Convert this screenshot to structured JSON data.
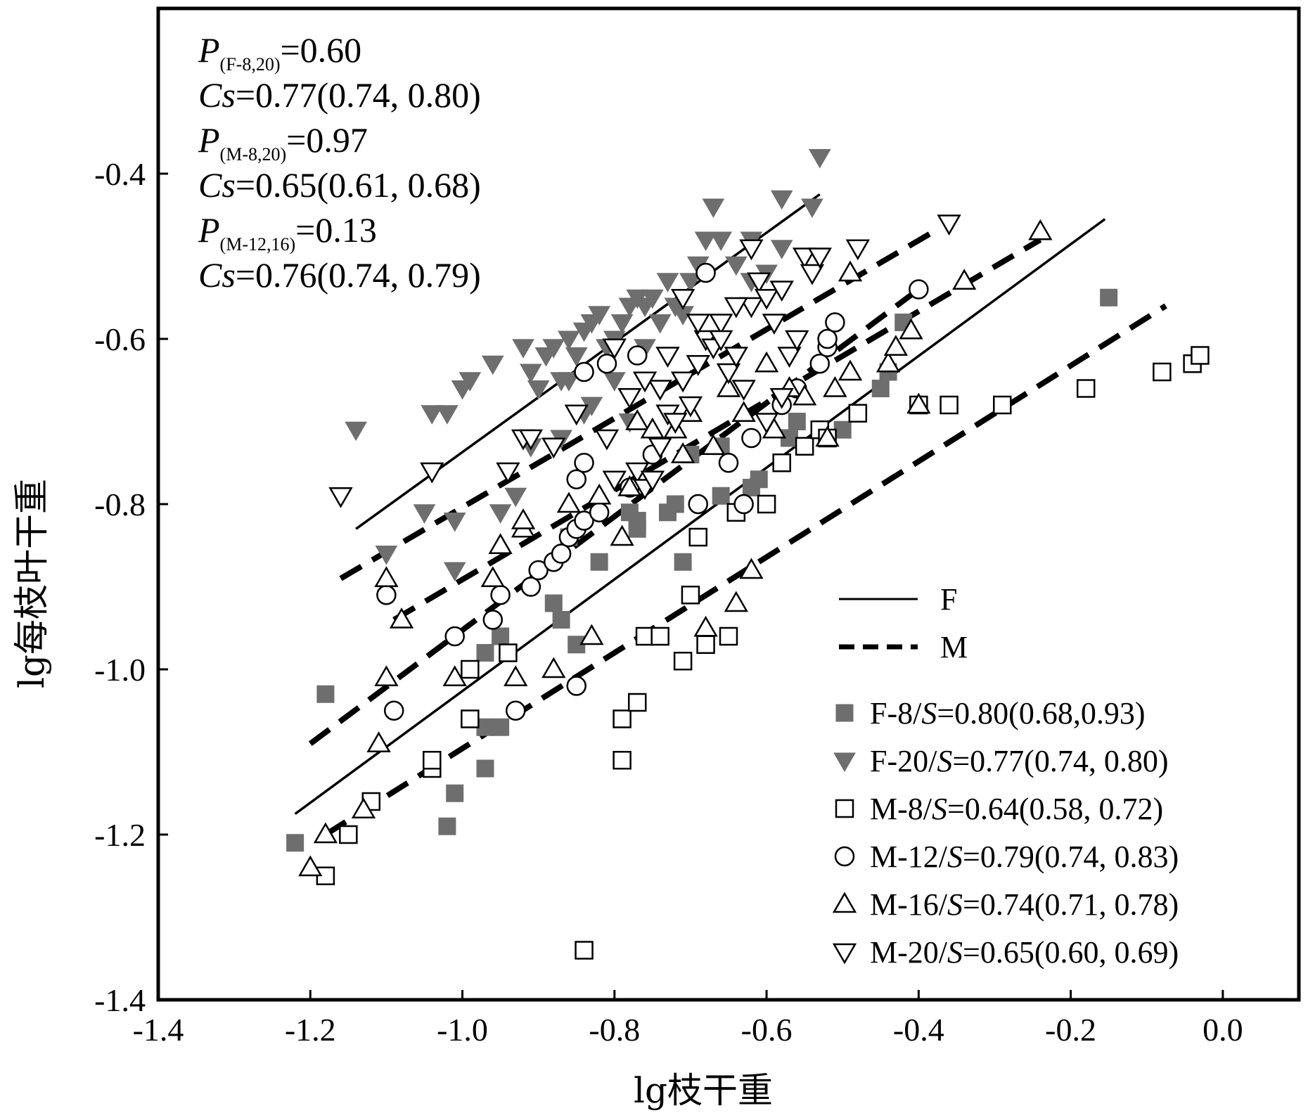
{
  "chart_data": {
    "type": "scatter",
    "xlabel": "lg枝干重",
    "ylabel": "lg每枝叶干重",
    "xlim": [
      -1.4,
      0.1
    ],
    "ylim": [
      -1.4,
      -0.2
    ],
    "xticks": [
      "-1.4",
      "-1.2",
      "-1.0",
      "-0.8",
      "-0.6",
      "-0.4",
      "-0.2",
      "0.0"
    ],
    "yticks": [
      "-1.4",
      "-1.2",
      "-1.0",
      "-0.8",
      "-0.6",
      "-0.4"
    ],
    "xtick_values": [
      -1.4,
      -1.2,
      -1.0,
      -0.8,
      -0.6,
      -0.4,
      -0.2,
      0.0
    ],
    "ytick_values": [
      -1.4,
      -1.2,
      -1.0,
      -0.8,
      -0.6,
      -0.4
    ],
    "grid": false,
    "legend_position": "bottom-right",
    "annotations": [
      {
        "p": "P",
        "sub": "(F-8,20)",
        "rest": "=0.60"
      },
      {
        "p": "Cs",
        "sub": "",
        "rest": "=0.77(0.74, 0.80)"
      },
      {
        "p": "P",
        "sub": "(M-8,20)",
        "rest": "=0.97"
      },
      {
        "p": "Cs",
        "sub": "",
        "rest": "=0.65(0.61, 0.68)"
      },
      {
        "p": "P",
        "sub": "(M-12,16)",
        "rest": "=0.13"
      },
      {
        "p": "Cs",
        "sub": "",
        "rest": "=0.76(0.74, 0.79)"
      }
    ],
    "line_legend": [
      {
        "label": "F",
        "style": "solid"
      },
      {
        "label": "M",
        "style": "dashed"
      }
    ],
    "fit_lines": [
      {
        "group": "F",
        "style": "solid",
        "x": [
          -1.14,
          -0.53
        ],
        "y": [
          -0.83,
          -0.425
        ]
      },
      {
        "group": "F",
        "style": "solid",
        "x": [
          -1.22,
          -0.155
        ],
        "y": [
          -1.175,
          -0.455
        ]
      },
      {
        "group": "M",
        "style": "dashed",
        "x": [
          -1.16,
          -0.38
        ],
        "y": [
          -0.89,
          -0.47
        ]
      },
      {
        "group": "M",
        "style": "dashed",
        "x": [
          -1.09,
          -0.24
        ],
        "y": [
          -0.94,
          -0.48
        ]
      },
      {
        "group": "M",
        "style": "dashed",
        "x": [
          -1.2,
          -0.4
        ],
        "y": [
          -1.09,
          -0.54
        ]
      },
      {
        "group": "M",
        "style": "dashed",
        "x": [
          -1.18,
          -0.075
        ],
        "y": [
          -1.2,
          -0.56
        ]
      }
    ],
    "series": [
      {
        "name": "F-8",
        "legend_prefix": "F-8/",
        "legend_s": "S",
        "legend_value": "=0.80(0.68,0.93)",
        "marker": "square",
        "fill": "#6e6e6e",
        "stroke": "#6e6e6e",
        "points": [
          [
            -1.22,
            -1.21
          ],
          [
            -1.18,
            -1.03
          ],
          [
            -1.02,
            -1.19
          ],
          [
            -1.01,
            -1.15
          ],
          [
            -0.97,
            -1.12
          ],
          [
            -0.97,
            -1.07
          ],
          [
            -0.95,
            -1.07
          ],
          [
            -0.95,
            -0.96
          ],
          [
            -0.97,
            -0.98
          ],
          [
            -0.99,
            -1.0
          ],
          [
            -0.88,
            -0.92
          ],
          [
            -0.87,
            -0.94
          ],
          [
            -0.85,
            -0.97
          ],
          [
            -0.82,
            -0.87
          ],
          [
            -0.86,
            -0.84
          ],
          [
            -0.77,
            -0.83
          ],
          [
            -0.78,
            -0.81
          ],
          [
            -0.73,
            -0.81
          ],
          [
            -0.71,
            -0.87
          ],
          [
            -0.72,
            -0.8
          ],
          [
            -0.66,
            -0.79
          ],
          [
            -0.62,
            -0.78
          ],
          [
            -0.61,
            -0.77
          ],
          [
            -0.57,
            -0.72
          ],
          [
            -0.56,
            -0.7
          ],
          [
            -0.53,
            -0.71
          ],
          [
            -0.5,
            -0.71
          ],
          [
            -0.45,
            -0.66
          ],
          [
            -0.44,
            -0.64
          ],
          [
            -0.42,
            -0.58
          ],
          [
            -0.15,
            -0.55
          ],
          [
            -0.66,
            -0.73
          ],
          [
            -0.7,
            -0.74
          ],
          [
            -0.77,
            -0.82
          ]
        ]
      },
      {
        "name": "F-20",
        "legend_prefix": "F-20/",
        "legend_s": "S",
        "legend_value": "=0.77(0.74, 0.80)",
        "marker": "tri-down",
        "fill": "#6e6e6e",
        "stroke": "#6e6e6e",
        "points": [
          [
            -1.14,
            -0.71
          ],
          [
            -1.1,
            -0.86
          ],
          [
            -1.05,
            -0.81
          ],
          [
            -1.01,
            -0.82
          ],
          [
            -1.01,
            -0.88
          ],
          [
            -1.02,
            -0.69
          ],
          [
            -1.04,
            -0.69
          ],
          [
            -1.0,
            -0.66
          ],
          [
            -0.99,
            -0.65
          ],
          [
            -0.96,
            -0.63
          ],
          [
            -0.95,
            -0.81
          ],
          [
            -0.93,
            -0.79
          ],
          [
            -0.92,
            -0.61
          ],
          [
            -0.91,
            -0.64
          ],
          [
            -0.9,
            -0.66
          ],
          [
            -0.88,
            -0.61
          ],
          [
            -0.87,
            -0.65
          ],
          [
            -0.86,
            -0.6
          ],
          [
            -0.85,
            -0.62
          ],
          [
            -0.84,
            -0.59
          ],
          [
            -0.83,
            -0.58
          ],
          [
            -0.82,
            -0.57
          ],
          [
            -0.81,
            -0.61
          ],
          [
            -0.8,
            -0.6
          ],
          [
            -0.79,
            -0.58
          ],
          [
            -0.78,
            -0.56
          ],
          [
            -0.77,
            -0.55
          ],
          [
            -0.76,
            -0.56
          ],
          [
            -0.75,
            -0.55
          ],
          [
            -0.74,
            -0.58
          ],
          [
            -0.73,
            -0.53
          ],
          [
            -0.72,
            -0.56
          ],
          [
            -0.71,
            -0.55
          ],
          [
            -0.7,
            -0.53
          ],
          [
            -0.69,
            -0.51
          ],
          [
            -0.68,
            -0.48
          ],
          [
            -0.67,
            -0.44
          ],
          [
            -0.66,
            -0.48
          ],
          [
            -0.64,
            -0.51
          ],
          [
            -0.62,
            -0.48
          ],
          [
            -0.6,
            -0.52
          ],
          [
            -0.58,
            -0.49
          ],
          [
            -0.58,
            -0.43
          ],
          [
            -0.54,
            -0.44
          ],
          [
            -0.53,
            -0.38
          ],
          [
            -0.62,
            -0.53
          ],
          [
            -0.86,
            -0.65
          ],
          [
            -0.83,
            -0.68
          ],
          [
            -0.8,
            -0.65
          ],
          [
            -0.78,
            -0.7
          ],
          [
            -0.91,
            -0.73
          ],
          [
            -0.87,
            -0.72
          ],
          [
            -0.84,
            -0.69
          ],
          [
            -0.89,
            -0.62
          ],
          [
            -0.76,
            -0.61
          ],
          [
            -0.71,
            -0.57
          ]
        ]
      },
      {
        "name": "M-8",
        "legend_prefix": "M-8/",
        "legend_s": "S",
        "legend_value": "=0.64(0.58, 0.72)",
        "marker": "square",
        "fill": "#ffffff",
        "stroke": "#000000",
        "points": [
          [
            -1.18,
            -1.25
          ],
          [
            -1.15,
            -1.2
          ],
          [
            -1.12,
            -1.16
          ],
          [
            -1.04,
            -1.12
          ],
          [
            -1.04,
            -1.11
          ],
          [
            -0.99,
            -1.06
          ],
          [
            -0.99,
            -1.0
          ],
          [
            -0.94,
            -0.98
          ],
          [
            -0.84,
            -1.34
          ],
          [
            -0.79,
            -1.11
          ],
          [
            -0.79,
            -1.06
          ],
          [
            -0.77,
            -1.04
          ],
          [
            -0.76,
            -0.96
          ],
          [
            -0.74,
            -0.96
          ],
          [
            -0.71,
            -0.99
          ],
          [
            -0.7,
            -0.91
          ],
          [
            -0.68,
            -0.97
          ],
          [
            -0.65,
            -0.96
          ],
          [
            -0.69,
            -0.84
          ],
          [
            -0.64,
            -0.81
          ],
          [
            -0.6,
            -0.8
          ],
          [
            -0.58,
            -0.75
          ],
          [
            -0.55,
            -0.73
          ],
          [
            -0.53,
            -0.71
          ],
          [
            -0.52,
            -0.72
          ],
          [
            -0.48,
            -0.69
          ],
          [
            -0.4,
            -0.68
          ],
          [
            -0.36,
            -0.68
          ],
          [
            -0.29,
            -0.68
          ],
          [
            -0.18,
            -0.66
          ],
          [
            -0.08,
            -0.64
          ],
          [
            -0.04,
            -0.63
          ],
          [
            -0.03,
            -0.62
          ]
        ]
      },
      {
        "name": "M-12",
        "legend_prefix": "M-12/",
        "legend_s": "S",
        "legend_value": "=0.79(0.74, 0.83)",
        "marker": "circle",
        "fill": "#ffffff",
        "stroke": "#000000",
        "points": [
          [
            -1.09,
            -1.05
          ],
          [
            -1.1,
            -0.91
          ],
          [
            -1.01,
            -0.96
          ],
          [
            -0.96,
            -0.94
          ],
          [
            -0.95,
            -0.91
          ],
          [
            -0.93,
            -1.05
          ],
          [
            -0.91,
            -0.9
          ],
          [
            -0.9,
            -0.88
          ],
          [
            -0.88,
            -0.87
          ],
          [
            -0.87,
            -0.86
          ],
          [
            -0.86,
            -0.84
          ],
          [
            -0.85,
            -0.83
          ],
          [
            -0.84,
            -0.82
          ],
          [
            -0.82,
            -0.81
          ],
          [
            -0.85,
            -0.77
          ],
          [
            -0.84,
            -0.75
          ],
          [
            -0.85,
            -1.02
          ],
          [
            -0.84,
            -0.64
          ],
          [
            -0.81,
            -0.63
          ],
          [
            -0.77,
            -0.62
          ],
          [
            -0.68,
            -0.52
          ],
          [
            -0.69,
            -0.8
          ],
          [
            -0.63,
            -0.8
          ],
          [
            -0.62,
            -0.72
          ],
          [
            -0.65,
            -0.75
          ],
          [
            -0.58,
            -0.68
          ],
          [
            -0.56,
            -0.66
          ],
          [
            -0.53,
            -0.63
          ],
          [
            -0.52,
            -0.61
          ],
          [
            -0.52,
            -0.6
          ],
          [
            -0.51,
            -0.58
          ],
          [
            -0.4,
            -0.54
          ],
          [
            -0.78,
            -0.78
          ],
          [
            -0.75,
            -0.74
          ]
        ]
      },
      {
        "name": "M-16",
        "legend_prefix": "M-16/",
        "legend_s": "S",
        "legend_value": "=0.74(0.71, 0.78)",
        "marker": "tri-up",
        "fill": "#ffffff",
        "stroke": "#000000",
        "points": [
          [
            -1.2,
            -1.24
          ],
          [
            -1.18,
            -1.2
          ],
          [
            -1.13,
            -1.17
          ],
          [
            -1.11,
            -1.09
          ],
          [
            -1.1,
            -1.01
          ],
          [
            -1.1,
            -0.89
          ],
          [
            -1.08,
            -0.94
          ],
          [
            -1.01,
            -1.01
          ],
          [
            -0.96,
            -0.89
          ],
          [
            -0.95,
            -0.85
          ],
          [
            -0.93,
            -1.01
          ],
          [
            -0.92,
            -0.83
          ],
          [
            -0.92,
            -0.82
          ],
          [
            -0.88,
            -1.0
          ],
          [
            -0.86,
            -0.8
          ],
          [
            -0.83,
            -0.96
          ],
          [
            -0.82,
            -0.79
          ],
          [
            -0.79,
            -0.84
          ],
          [
            -0.78,
            -0.78
          ],
          [
            -0.77,
            -0.7
          ],
          [
            -0.72,
            -0.71
          ],
          [
            -0.68,
            -0.95
          ],
          [
            -0.67,
            -0.73
          ],
          [
            -0.64,
            -0.92
          ],
          [
            -0.63,
            -0.69
          ],
          [
            -0.62,
            -0.88
          ],
          [
            -0.59,
            -0.71
          ],
          [
            -0.57,
            -0.66
          ],
          [
            -0.55,
            -0.67
          ],
          [
            -0.52,
            -0.72
          ],
          [
            -0.51,
            -0.66
          ],
          [
            -0.49,
            -0.52
          ],
          [
            -0.49,
            -0.64
          ],
          [
            -0.44,
            -0.63
          ],
          [
            -0.43,
            -0.61
          ],
          [
            -0.41,
            -0.59
          ],
          [
            -0.4,
            -0.68
          ],
          [
            -0.34,
            -0.53
          ],
          [
            -0.24,
            -0.47
          ],
          [
            -0.71,
            -0.74
          ],
          [
            -0.75,
            -0.71
          ],
          [
            -0.7,
            -0.69
          ],
          [
            -0.65,
            -0.66
          ],
          [
            -0.6,
            -0.63
          ]
        ]
      },
      {
        "name": "M-20",
        "legend_prefix": "M-20/",
        "legend_s": "S",
        "legend_value": "=0.65(0.60, 0.69)",
        "marker": "tri-down",
        "fill": "#ffffff",
        "stroke": "#000000",
        "points": [
          [
            -1.16,
            -0.79
          ],
          [
            -1.04,
            -0.76
          ],
          [
            -0.94,
            -0.76
          ],
          [
            -0.92,
            -0.72
          ],
          [
            -0.91,
            -0.72
          ],
          [
            -0.88,
            -0.73
          ],
          [
            -0.85,
            -0.69
          ],
          [
            -0.81,
            -0.72
          ],
          [
            -0.8,
            -0.77
          ],
          [
            -0.78,
            -0.67
          ],
          [
            -0.77,
            -0.76
          ],
          [
            -0.76,
            -0.78
          ],
          [
            -0.75,
            -0.77
          ],
          [
            -0.74,
            -0.73
          ],
          [
            -0.74,
            -0.66
          ],
          [
            -0.73,
            -0.69
          ],
          [
            -0.72,
            -0.7
          ],
          [
            -0.71,
            -0.65
          ],
          [
            -0.7,
            -0.68
          ],
          [
            -0.69,
            -0.63
          ],
          [
            -0.68,
            -0.6
          ],
          [
            -0.67,
            -0.61
          ],
          [
            -0.66,
            -0.58
          ],
          [
            -0.65,
            -0.64
          ],
          [
            -0.64,
            -0.62
          ],
          [
            -0.63,
            -0.66
          ],
          [
            -0.62,
            -0.56
          ],
          [
            -0.61,
            -0.53
          ],
          [
            -0.6,
            -0.55
          ],
          [
            -0.59,
            -0.58
          ],
          [
            -0.58,
            -0.54
          ],
          [
            -0.57,
            -0.62
          ],
          [
            -0.56,
            -0.6
          ],
          [
            -0.55,
            -0.5
          ],
          [
            -0.54,
            -0.52
          ],
          [
            -0.53,
            -0.5
          ],
          [
            -0.48,
            -0.49
          ],
          [
            -0.36,
            -0.46
          ],
          [
            -0.62,
            -0.49
          ],
          [
            -0.69,
            -0.58
          ],
          [
            -0.73,
            -0.62
          ],
          [
            -0.76,
            -0.65
          ],
          [
            -0.8,
            -0.61
          ],
          [
            -0.66,
            -0.6
          ],
          [
            -0.6,
            -0.7
          ],
          [
            -0.58,
            -0.67
          ],
          [
            -0.64,
            -0.56
          ],
          [
            -0.71,
            -0.55
          ]
        ]
      }
    ]
  }
}
